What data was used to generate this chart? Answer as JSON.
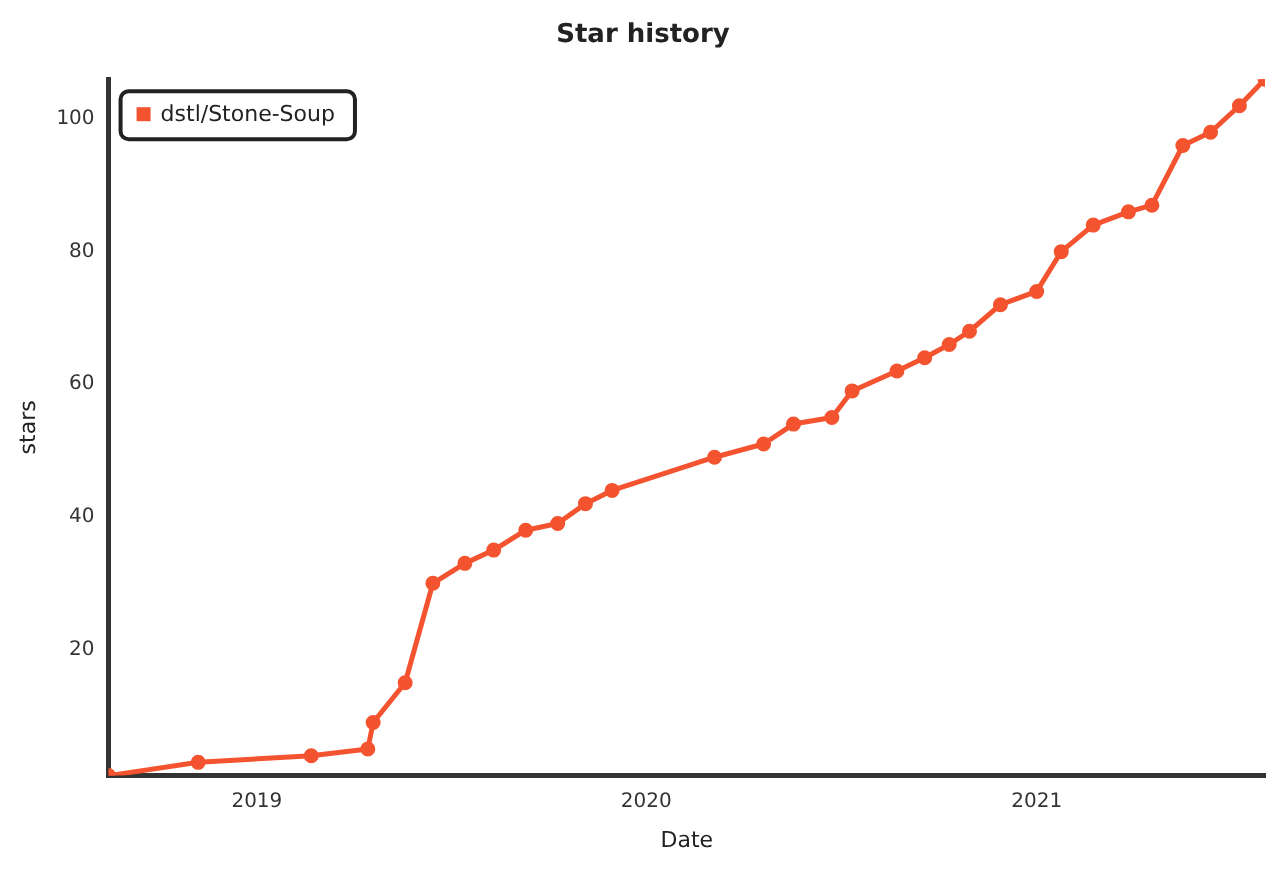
{
  "chart_data": {
    "type": "line",
    "title": "Star history",
    "xlabel": "Date",
    "ylabel": "stars",
    "x": [
      "2018-08-15",
      "2018-11-07",
      "2019-02-21",
      "2019-04-15",
      "2019-04-20",
      "2019-05-20",
      "2019-06-15",
      "2019-07-15",
      "2019-08-11",
      "2019-09-10",
      "2019-10-10",
      "2019-11-05",
      "2019-11-30",
      "2020-03-05",
      "2020-04-20",
      "2020-05-18",
      "2020-06-23",
      "2020-07-12",
      "2020-08-23",
      "2020-09-18",
      "2020-10-11",
      "2020-10-30",
      "2020-11-28",
      "2021-01-01",
      "2021-01-24",
      "2021-02-23",
      "2021-03-28",
      "2021-04-19",
      "2021-05-18",
      "2021-06-13",
      "2021-07-10",
      "2021-08-03"
    ],
    "series": [
      {
        "name": "dstl/Stone-Soup",
        "color": "#f4532f",
        "values": [
          1,
          3,
          4,
          5,
          9,
          15,
          30,
          33,
          35,
          38,
          39,
          42,
          44,
          49,
          51,
          54,
          55,
          59,
          62,
          64,
          66,
          68,
          72,
          74,
          80,
          84,
          86,
          87,
          96,
          98,
          102,
          106
        ]
      }
    ],
    "xlim": [
      "2018-08-15",
      "2021-08-03"
    ],
    "xticks": [
      "2019",
      "2020",
      "2021"
    ],
    "ylim": [
      1,
      106
    ],
    "yticks": [
      20,
      40,
      60,
      80,
      100
    ],
    "grid": false,
    "legend": "top left",
    "marker": "circle",
    "line_style": "solid"
  }
}
